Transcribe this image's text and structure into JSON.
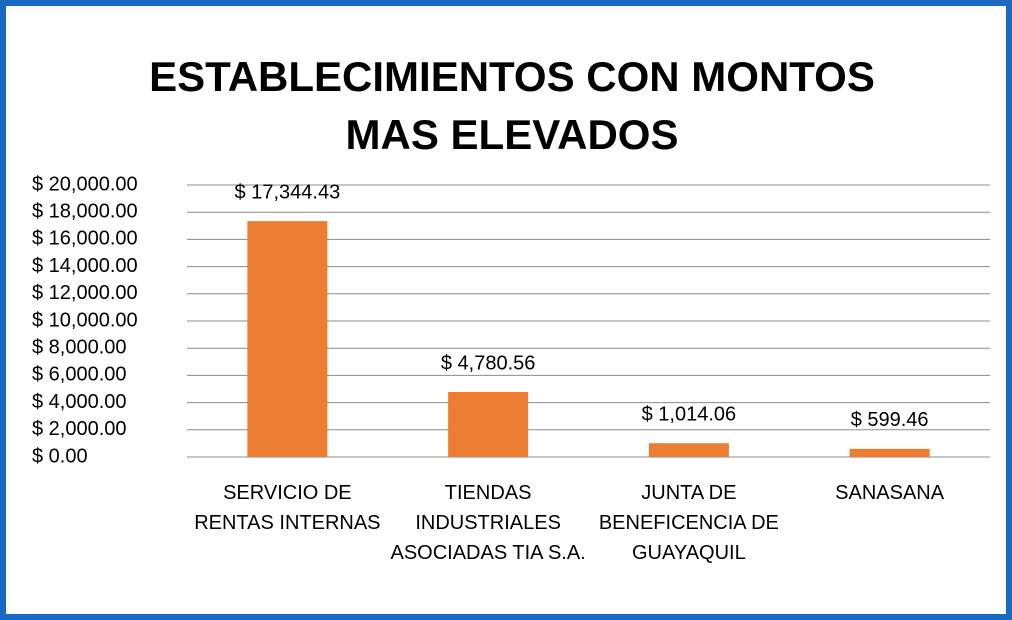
{
  "chart_data": {
    "type": "bar",
    "title": "ESTABLECIMIENTOS CON MONTOS MAS ELEVADOS",
    "categories": [
      "SERVICIO DE RENTAS INTERNAS",
      "TIENDAS INDUSTRIALES ASOCIADAS TIA S.A.",
      "JUNTA DE BENEFICENCIA DE GUAYAQUIL",
      "SANASANA"
    ],
    "values": [
      17344.43,
      4780.56,
      1014.06,
      599.46
    ],
    "value_labels": [
      "$ 17,344.43",
      "$ 4,780.56",
      "$ 1,014.06",
      "$ 599.46"
    ],
    "color": "#ed7d31",
    "ylim": [
      0,
      20000
    ],
    "yticks": [
      {
        "value": 0,
        "label": "$ 0.00"
      },
      {
        "value": 2000,
        "label": "$ 2,000.00"
      },
      {
        "value": 4000,
        "label": "$ 4,000.00"
      },
      {
        "value": 6000,
        "label": "$ 6,000.00"
      },
      {
        "value": 8000,
        "label": "$ 8,000.00"
      },
      {
        "value": 10000,
        "label": "$ 10,000.00"
      },
      {
        "value": 12000,
        "label": "$ 12,000.00"
      },
      {
        "value": 14000,
        "label": "$ 14,000.00"
      },
      {
        "value": 16000,
        "label": "$ 16,000.00"
      },
      {
        "value": 18000,
        "label": "$ 18,000.00"
      },
      {
        "value": 20000,
        "label": "$ 20,000.00"
      }
    ],
    "grid": true
  }
}
